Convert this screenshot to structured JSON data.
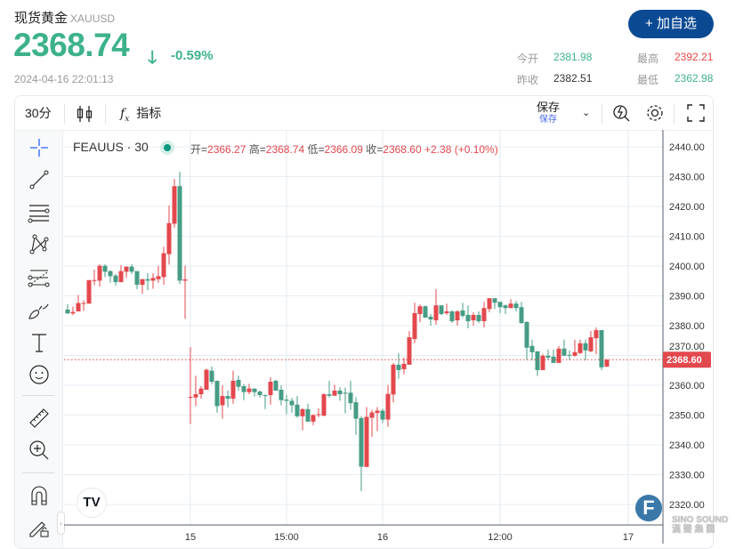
{
  "header": {
    "name": "现货黄金",
    "symbol": "XAUUSD",
    "price": "2368.74",
    "change_pct": "-0.59%",
    "timestamp": "2024-04-16 22:01:13",
    "add_button": "+ 加自选",
    "stats": [
      {
        "label": "今开",
        "value": "2381.98",
        "color": "#3db28a"
      },
      {
        "label": "最高",
        "value": "2392.21",
        "color": "#e84545"
      },
      {
        "label": "昨收",
        "value": "2382.51",
        "color": "#333333"
      },
      {
        "label": "最低",
        "value": "2362.98",
        "color": "#3db28a"
      }
    ]
  },
  "toolbar": {
    "interval": "30分",
    "indicators": "指标",
    "save": "保存",
    "save_sub": "保存"
  },
  "legend": {
    "symbol": "FEAUUS · 30",
    "open_label": "开=",
    "open": "2366.27",
    "high_label": "高=",
    "high": "2368.74",
    "low_label": "低=",
    "low": "2366.09",
    "close_label": "收=",
    "close": "2368.60",
    "change": "+2.38 (+0.10%)"
  },
  "colors": {
    "up": "#e3484d",
    "down": "#469c85",
    "accent": "#0b4a93"
  },
  "chart_data": {
    "type": "candlestick",
    "ylim": [
      2316,
      2445
    ],
    "y_ticks": [
      "2440.00",
      "2430.00",
      "2420.00",
      "2410.00",
      "2400.00",
      "2390.00",
      "2380.00",
      "2370.00",
      "2360.00",
      "2350.00",
      "2340.00",
      "2330.00",
      "2320.00"
    ],
    "x_ticks": [
      {
        "label": "15",
        "index": 23
      },
      {
        "label": "15:00",
        "index": 41
      },
      {
        "label": "16",
        "index": 59
      },
      {
        "label": "12:00",
        "index": 81
      },
      {
        "label": "17",
        "index": 105
      }
    ],
    "last_price": "2368.60",
    "ohlc": [
      [
        2385.4,
        2387.2,
        2384.0,
        2384.1
      ],
      [
        2384.1,
        2386.4,
        2383.5,
        2384.6
      ],
      [
        2384.8,
        2390.3,
        2384.8,
        2387.6
      ],
      [
        2387.4,
        2388.5,
        2385.0,
        2387.6
      ],
      [
        2387.4,
        2395.3,
        2387.4,
        2395.3
      ],
      [
        2395.1,
        2398.8,
        2393.6,
        2395.3
      ],
      [
        2395.1,
        2400.6,
        2393.1,
        2400.1
      ],
      [
        2400.1,
        2400.6,
        2396.3,
        2398.1
      ],
      [
        2398.3,
        2398.6,
        2394.4,
        2396.6
      ],
      [
        2396.8,
        2397.3,
        2393.4,
        2394.6
      ],
      [
        2394.6,
        2400.3,
        2394.6,
        2398.3
      ],
      [
        2398.1,
        2399.8,
        2396.0,
        2399.8
      ],
      [
        2399.8,
        2400.6,
        2397.3,
        2398.1
      ],
      [
        2398.3,
        2398.3,
        2392.2,
        2393.7
      ],
      [
        2393.7,
        2395.6,
        2390.7,
        2395.6
      ],
      [
        2395.6,
        2397.6,
        2391.9,
        2395.1
      ],
      [
        2395.1,
        2397.6,
        2392.4,
        2396.0
      ],
      [
        2395.6,
        2400.1,
        2394.4,
        2396.6
      ],
      [
        2396.3,
        2406.5,
        2393.7,
        2404.3
      ],
      [
        2404.0,
        2420.3,
        2400.5,
        2414.4
      ],
      [
        2414.2,
        2429.2,
        2412.9,
        2426.8
      ],
      [
        2426.8,
        2431.6,
        2393.9,
        2395.1
      ],
      [
        2395.1,
        2400.1,
        2382.3,
        2395.5
      ],
      [
        2355.8,
        2372.8,
        2347.0,
        2356.1
      ],
      [
        2355.9,
        2363.2,
        2353.0,
        2357.0
      ],
      [
        2357.0,
        2359.7,
        2355.5,
        2358.9
      ],
      [
        2358.5,
        2365.6,
        2358.5,
        2365.2
      ],
      [
        2364.9,
        2366.3,
        2360.4,
        2361.2
      ],
      [
        2361.5,
        2361.5,
        2350.8,
        2353.0
      ],
      [
        2353.3,
        2360.0,
        2348.8,
        2356.4
      ],
      [
        2356.4,
        2358.2,
        2352.6,
        2355.5
      ],
      [
        2355.5,
        2364.9,
        2353.8,
        2361.5
      ],
      [
        2361.8,
        2363.2,
        2358.2,
        2359.5
      ],
      [
        2359.7,
        2360.4,
        2355.0,
        2357.7
      ],
      [
        2357.7,
        2360.5,
        2357.0,
        2358.9
      ],
      [
        2358.9,
        2358.9,
        2356.2,
        2357.7
      ],
      [
        2357.9,
        2358.2,
        2355.9,
        2356.7
      ],
      [
        2356.7,
        2356.9,
        2352.0,
        2356.5
      ],
      [
        2356.7,
        2362.7,
        2353.5,
        2361.2
      ],
      [
        2361.5,
        2361.9,
        2358.2,
        2358.2
      ],
      [
        2358.5,
        2360.0,
        2353.3,
        2355.0
      ],
      [
        2355.2,
        2356.7,
        2350.3,
        2354.8
      ],
      [
        2354.8,
        2355.8,
        2350.8,
        2353.3
      ],
      [
        2353.5,
        2356.4,
        2349.1,
        2349.6
      ],
      [
        2349.6,
        2352.3,
        2344.9,
        2352.0
      ],
      [
        2352.0,
        2353.8,
        2347.8,
        2347.8
      ],
      [
        2347.8,
        2350.3,
        2346.6,
        2350.0
      ],
      [
        2350.0,
        2352.3,
        2349.3,
        2350.3
      ],
      [
        2349.8,
        2357.2,
        2349.6,
        2357.0
      ],
      [
        2357.0,
        2361.5,
        2355.9,
        2356.5
      ],
      [
        2356.5,
        2360.2,
        2356.5,
        2358.2
      ],
      [
        2358.2,
        2359.4,
        2354.8,
        2357.0
      ],
      [
        2357.5,
        2359.2,
        2350.6,
        2357.3
      ],
      [
        2357.5,
        2361.5,
        2351.8,
        2354.0
      ],
      [
        2354.3,
        2356.0,
        2343.4,
        2348.8
      ],
      [
        2349.0,
        2349.6,
        2324.5,
        2332.7
      ],
      [
        2332.6,
        2352.7,
        2332.6,
        2349.4
      ],
      [
        2349.1,
        2351.8,
        2342.7,
        2350.9
      ],
      [
        2350.7,
        2352.7,
        2344.6,
        2351.5
      ],
      [
        2351.5,
        2352.1,
        2347.3,
        2348.5
      ],
      [
        2348.5,
        2360.1,
        2346.1,
        2357.1
      ],
      [
        2356.9,
        2367.5,
        2354.3,
        2366.9
      ],
      [
        2366.9,
        2370.8,
        2362.2,
        2365.1
      ],
      [
        2365.4,
        2369.3,
        2363.7,
        2367.2
      ],
      [
        2366.9,
        2378.2,
        2366.9,
        2376.1
      ],
      [
        2375.5,
        2387.7,
        2374.1,
        2384.2
      ],
      [
        2383.9,
        2387.1,
        2381.2,
        2386.5
      ],
      [
        2386.5,
        2386.8,
        2382.7,
        2382.7
      ],
      [
        2383.0,
        2383.9,
        2380.0,
        2382.1
      ],
      [
        2381.8,
        2392.2,
        2380.3,
        2386.8
      ],
      [
        2386.8,
        2386.8,
        2383.6,
        2383.9
      ],
      [
        2384.2,
        2387.4,
        2383.6,
        2384.8
      ],
      [
        2384.8,
        2385.1,
        2380.9,
        2381.5
      ],
      [
        2381.8,
        2385.1,
        2380.0,
        2384.8
      ],
      [
        2385.1,
        2387.7,
        2382.7,
        2383.3
      ],
      [
        2383.6,
        2386.8,
        2379.1,
        2381.5
      ],
      [
        2381.8,
        2384.5,
        2380.0,
        2383.6
      ],
      [
        2383.6,
        2384.8,
        2380.9,
        2381.5
      ],
      [
        2381.5,
        2388.0,
        2379.4,
        2385.9
      ],
      [
        2385.6,
        2389.2,
        2384.5,
        2389.2
      ],
      [
        2389.2,
        2389.2,
        2385.6,
        2387.7
      ],
      [
        2388.0,
        2388.0,
        2384.2,
        2386.2
      ],
      [
        2386.8,
        2387.1,
        2383.9,
        2385.9
      ],
      [
        2385.9,
        2388.9,
        2385.9,
        2387.4
      ],
      [
        2387.4,
        2388.3,
        2384.8,
        2385.9
      ],
      [
        2386.2,
        2388.0,
        2380.6,
        2380.9
      ],
      [
        2381.2,
        2381.5,
        2368.4,
        2372.6
      ],
      [
        2373.2,
        2375.3,
        2368.4,
        2371.1
      ],
      [
        2371.4,
        2371.4,
        2363.1,
        2365.1
      ],
      [
        2365.1,
        2370.5,
        2365.1,
        2369.9
      ],
      [
        2369.9,
        2372.0,
        2368.4,
        2369.3
      ],
      [
        2369.6,
        2372.0,
        2367.5,
        2367.5
      ],
      [
        2367.5,
        2373.2,
        2367.5,
        2372.3
      ],
      [
        2372.3,
        2375.3,
        2369.9,
        2369.9
      ],
      [
        2370.2,
        2371.7,
        2368.4,
        2369.9
      ],
      [
        2369.9,
        2375.3,
        2369.6,
        2371.1
      ],
      [
        2370.8,
        2375.3,
        2370.5,
        2374.1
      ],
      [
        2374.1,
        2375.3,
        2368.4,
        2371.7
      ],
      [
        2371.4,
        2378.2,
        2371.1,
        2376.1
      ],
      [
        2375.8,
        2379.4,
        2370.5,
        2378.5
      ],
      [
        2378.5,
        2378.5,
        2365.1,
        2366.0
      ],
      [
        2366.27,
        2368.74,
        2366.09,
        2368.6
      ]
    ]
  },
  "watermark": "SINO SOUND 漢聲集團"
}
